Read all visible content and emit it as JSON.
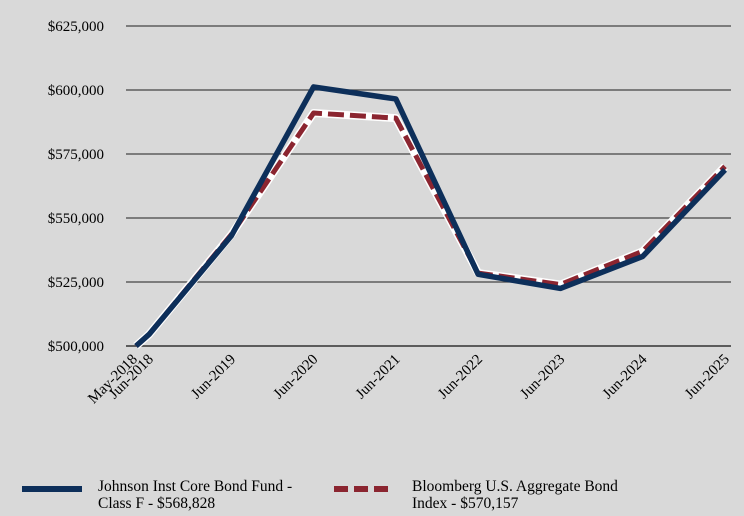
{
  "chart_data": {
    "type": "line",
    "x": [
      "May-2018",
      "Jun-2018",
      "Jun-2019",
      "Jun-2020",
      "Jun-2021",
      "Jun-2022",
      "Jun-2023",
      "Jun-2024",
      "Jun-2025"
    ],
    "y_ticks": [
      "$500,000",
      "$525,000",
      "$550,000",
      "$575,000",
      "$600,000",
      "$625,000"
    ],
    "ylim": [
      500000,
      625000
    ],
    "grid": "horizontal",
    "legend_position": "bottom",
    "series": [
      {
        "name": "Johnson Inst Core Bond Fund - Class F - $568,828",
        "color": "#0d2f5a",
        "style": "solid",
        "values": [
          500000,
          504500,
          543000,
          601200,
          596500,
          528000,
          522500,
          535000,
          568828
        ]
      },
      {
        "name": "Bloomberg U.S. Aggregate Bond Index - $570,157",
        "color": "#8b2530",
        "style": "dashed",
        "values": [
          500000,
          504500,
          543500,
          591000,
          589000,
          528500,
          524000,
          537000,
          570157
        ]
      }
    ]
  }
}
